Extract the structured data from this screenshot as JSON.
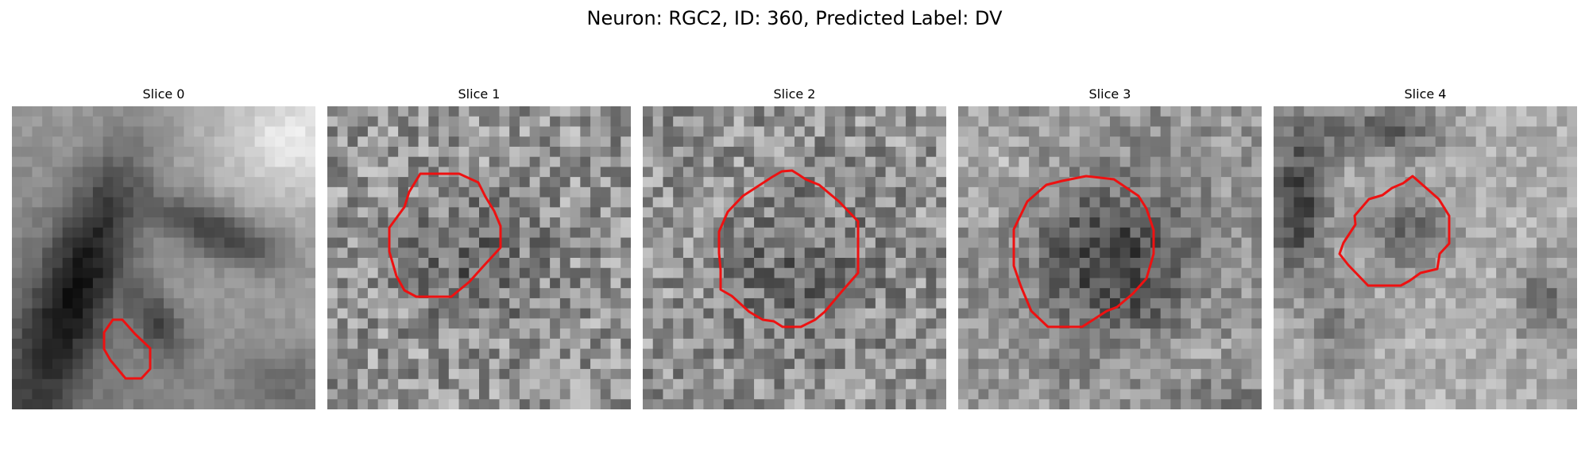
{
  "figure": {
    "title": "Neuron: RGC2, ID: 360, Predicted Label: DV",
    "outline_color": "#ee1111",
    "image_style": "grayscale"
  },
  "panels": [
    {
      "title": "Slice 0"
    },
    {
      "title": "Slice 1"
    },
    {
      "title": "Slice 2"
    },
    {
      "title": "Slice 3"
    },
    {
      "title": "Slice 4"
    }
  ]
}
